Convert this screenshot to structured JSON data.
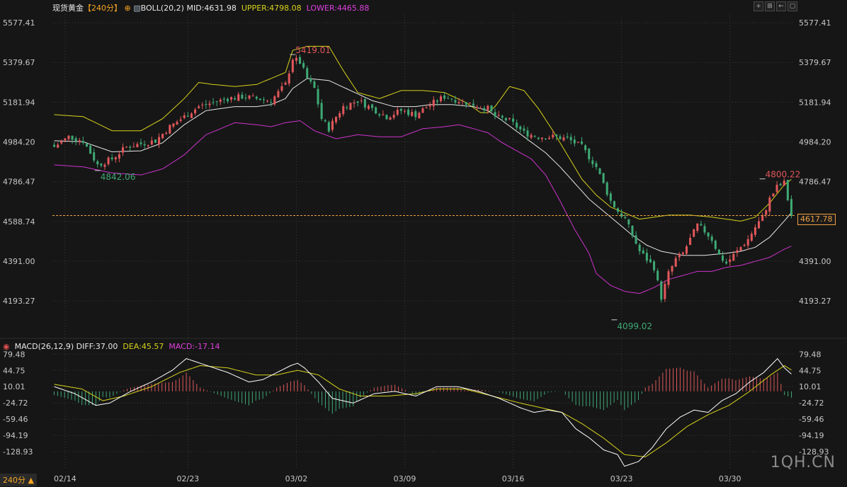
{
  "header": {
    "instrument": "现货黄金",
    "period": "【240分】",
    "boll_label": "BOLL(20,2)",
    "mid": "MID:4631.98",
    "upper": "UPPER:4798.08",
    "lower": "LOWER:4465.88"
  },
  "macd_header": {
    "label": "MACD(26,12,9)",
    "diff": "DIFF:37.00",
    "dea": "DEA:45.57",
    "macd": "MACD:-17.14"
  },
  "period_tag": "240分 ▲",
  "watermark": "1QH.CN",
  "current_price": "4617.78",
  "colors": {
    "bg": "#161616",
    "up": "#e0575b",
    "down": "#3ea874",
    "mid": "#e8e8e8",
    "upper": "#d7d21c",
    "lower": "#cc33cc",
    "dea": "#d7d21c",
    "diff": "#ffffff",
    "macd_label": "#e040e0",
    "grid": "#3a3a3a",
    "price_line": "#f0a040"
  },
  "chart_data": [
    {
      "type": "candlestick",
      "title": "现货黄金 240分",
      "indicator": "BOLL(20,2)",
      "y_ticks": [
        "5577.41",
        "5379.67",
        "5181.94",
        "4984.20",
        "4786.47",
        "4588.74",
        "4391.00",
        "4193.27"
      ],
      "y_tick_values": [
        5577.41,
        5379.67,
        5181.94,
        4984.2,
        4786.47,
        4588.74,
        4391.0,
        4193.27
      ],
      "x_ticks": [
        "02/14",
        "02/23",
        "03/02",
        "03/09",
        "03/16",
        "03/23",
        "03/30"
      ],
      "x_tick_index": [
        3,
        37,
        67,
        97,
        127,
        157,
        187
      ],
      "ylim": [
        4035,
        5620
      ],
      "n_bars": 205,
      "annotations": [
        {
          "text": "5419.01",
          "index": 66,
          "value": 5419.01,
          "kind": "high"
        },
        {
          "text": "4842.06",
          "index": 12,
          "value": 4842.06,
          "kind": "low"
        },
        {
          "text": "4800.22",
          "index": 196,
          "value": 4800.22,
          "kind": "high"
        },
        {
          "text": "4099.02",
          "index": 155,
          "value": 4099.02,
          "kind": "low"
        }
      ],
      "last_price": 4617.78,
      "anchors": {
        "close": [
          [
            0,
            4960
          ],
          [
            4,
            5010
          ],
          [
            8,
            4990
          ],
          [
            12,
            4870
          ],
          [
            16,
            4900
          ],
          [
            20,
            4960
          ],
          [
            24,
            4975
          ],
          [
            28,
            4990
          ],
          [
            32,
            5060
          ],
          [
            36,
            5110
          ],
          [
            40,
            5160
          ],
          [
            44,
            5180
          ],
          [
            48,
            5200
          ],
          [
            52,
            5210
          ],
          [
            56,
            5200
          ],
          [
            60,
            5190
          ],
          [
            64,
            5270
          ],
          [
            66,
            5400
          ],
          [
            68,
            5380
          ],
          [
            70,
            5300
          ],
          [
            72,
            5250
          ],
          [
            74,
            5100
          ],
          [
            76,
            5050
          ],
          [
            78,
            5110
          ],
          [
            80,
            5160
          ],
          [
            84,
            5190
          ],
          [
            88,
            5150
          ],
          [
            92,
            5110
          ],
          [
            96,
            5140
          ],
          [
            100,
            5120
          ],
          [
            104,
            5170
          ],
          [
            108,
            5210
          ],
          [
            112,
            5190
          ],
          [
            116,
            5170
          ],
          [
            120,
            5150
          ],
          [
            122,
            5110
          ],
          [
            126,
            5090
          ],
          [
            130,
            5030
          ],
          [
            134,
            5010
          ],
          [
            138,
            5010
          ],
          [
            142,
            5000
          ],
          [
            146,
            4960
          ],
          [
            150,
            4860
          ],
          [
            154,
            4690
          ],
          [
            156,
            4640
          ],
          [
            158,
            4600
          ],
          [
            160,
            4520
          ],
          [
            162,
            4440
          ],
          [
            164,
            4400
          ],
          [
            166,
            4360
          ],
          [
            168,
            4210
          ],
          [
            170,
            4330
          ],
          [
            172,
            4400
          ],
          [
            174,
            4430
          ],
          [
            176,
            4500
          ],
          [
            178,
            4570
          ],
          [
            180,
            4540
          ],
          [
            182,
            4500
          ],
          [
            184,
            4420
          ],
          [
            186,
            4380
          ],
          [
            188,
            4420
          ],
          [
            190,
            4460
          ],
          [
            192,
            4500
          ],
          [
            194,
            4560
          ],
          [
            196,
            4610
          ],
          [
            198,
            4700
          ],
          [
            200,
            4760
          ],
          [
            202,
            4780
          ],
          [
            204,
            4617.78
          ]
        ],
        "upper": [
          [
            0,
            5120
          ],
          [
            8,
            5110
          ],
          [
            16,
            5040
          ],
          [
            24,
            5040
          ],
          [
            30,
            5100
          ],
          [
            36,
            5200
          ],
          [
            40,
            5280
          ],
          [
            44,
            5270
          ],
          [
            50,
            5260
          ],
          [
            56,
            5270
          ],
          [
            60,
            5300
          ],
          [
            64,
            5330
          ],
          [
            66,
            5440
          ],
          [
            70,
            5460
          ],
          [
            76,
            5460
          ],
          [
            80,
            5340
          ],
          [
            84,
            5230
          ],
          [
            90,
            5200
          ],
          [
            96,
            5240
          ],
          [
            102,
            5240
          ],
          [
            108,
            5230
          ],
          [
            114,
            5180
          ],
          [
            118,
            5130
          ],
          [
            120,
            5130
          ],
          [
            122,
            5160
          ],
          [
            126,
            5260
          ],
          [
            130,
            5240
          ],
          [
            134,
            5150
          ],
          [
            138,
            5040
          ],
          [
            142,
            4920
          ],
          [
            146,
            4800
          ],
          [
            150,
            4720
          ],
          [
            154,
            4660
          ],
          [
            158,
            4630
          ],
          [
            162,
            4600
          ],
          [
            166,
            4610
          ],
          [
            170,
            4620
          ],
          [
            176,
            4620
          ],
          [
            182,
            4610
          ],
          [
            186,
            4600
          ],
          [
            190,
            4590
          ],
          [
            194,
            4610
          ],
          [
            198,
            4680
          ],
          [
            202,
            4770
          ],
          [
            204,
            4798.08
          ]
        ],
        "mid": [
          [
            0,
            4990
          ],
          [
            8,
            4985
          ],
          [
            16,
            4935
          ],
          [
            24,
            4940
          ],
          [
            30,
            4980
          ],
          [
            36,
            5070
          ],
          [
            42,
            5140
          ],
          [
            50,
            5160
          ],
          [
            56,
            5160
          ],
          [
            60,
            5170
          ],
          [
            64,
            5200
          ],
          [
            66,
            5250
          ],
          [
            70,
            5300
          ],
          [
            76,
            5290
          ],
          [
            82,
            5240
          ],
          [
            88,
            5190
          ],
          [
            94,
            5160
          ],
          [
            100,
            5160
          ],
          [
            104,
            5170
          ],
          [
            110,
            5170
          ],
          [
            116,
            5160
          ],
          [
            120,
            5140
          ],
          [
            124,
            5090
          ],
          [
            130,
            5010
          ],
          [
            136,
            4930
          ],
          [
            140,
            4860
          ],
          [
            144,
            4780
          ],
          [
            148,
            4700
          ],
          [
            152,
            4640
          ],
          [
            156,
            4580
          ],
          [
            160,
            4520
          ],
          [
            164,
            4470
          ],
          [
            168,
            4440
          ],
          [
            174,
            4420
          ],
          [
            180,
            4420
          ],
          [
            186,
            4430
          ],
          [
            190,
            4440
          ],
          [
            194,
            4460
          ],
          [
            198,
            4510
          ],
          [
            202,
            4590
          ],
          [
            204,
            4631.98
          ]
        ],
        "lower": [
          [
            0,
            4870
          ],
          [
            8,
            4860
          ],
          [
            16,
            4830
          ],
          [
            24,
            4820
          ],
          [
            30,
            4850
          ],
          [
            36,
            4920
          ],
          [
            42,
            5020
          ],
          [
            50,
            5080
          ],
          [
            56,
            5070
          ],
          [
            60,
            5060
          ],
          [
            64,
            5080
          ],
          [
            68,
            5090
          ],
          [
            72,
            5040
          ],
          [
            78,
            5000
          ],
          [
            84,
            5020
          ],
          [
            90,
            5010
          ],
          [
            96,
            5010
          ],
          [
            102,
            5050
          ],
          [
            108,
            5060
          ],
          [
            112,
            5070
          ],
          [
            116,
            5050
          ],
          [
            120,
            5030
          ],
          [
            124,
            4980
          ],
          [
            128,
            4940
          ],
          [
            132,
            4900
          ],
          [
            136,
            4820
          ],
          [
            140,
            4690
          ],
          [
            144,
            4550
          ],
          [
            148,
            4430
          ],
          [
            150,
            4330
          ],
          [
            154,
            4270
          ],
          [
            158,
            4240
          ],
          [
            162,
            4230
          ],
          [
            166,
            4260
          ],
          [
            170,
            4300
          ],
          [
            174,
            4320
          ],
          [
            178,
            4340
          ],
          [
            182,
            4340
          ],
          [
            186,
            4360
          ],
          [
            190,
            4370
          ],
          [
            194,
            4390
          ],
          [
            198,
            4410
          ],
          [
            202,
            4450
          ],
          [
            204,
            4465.88
          ]
        ]
      }
    },
    {
      "type": "bar+line",
      "title": "MACD(26,12,9)",
      "y_ticks": [
        "79.48",
        "44.75",
        "10.01",
        "-24.72",
        "-59.46",
        "-94.19",
        "-128.93"
      ],
      "y_tick_values": [
        79.48,
        44.75,
        10.01,
        -24.72,
        -59.46,
        -94.19,
        -128.93
      ],
      "ylim": [
        -165,
        92
      ],
      "series": [
        {
          "name": "DIFF",
          "last": 37.0,
          "anchors": [
            [
              0,
              10
            ],
            [
              6,
              -5
            ],
            [
              12,
              -30
            ],
            [
              16,
              -25
            ],
            [
              22,
              0
            ],
            [
              28,
              20
            ],
            [
              34,
              45
            ],
            [
              38,
              70
            ],
            [
              42,
              60
            ],
            [
              50,
              40
            ],
            [
              56,
              20
            ],
            [
              60,
              25
            ],
            [
              64,
              40
            ],
            [
              68,
              55
            ],
            [
              70,
              60
            ],
            [
              72,
              50
            ],
            [
              76,
              20
            ],
            [
              80,
              -15
            ],
            [
              86,
              -25
            ],
            [
              92,
              -5
            ],
            [
              98,
              0
            ],
            [
              104,
              -10
            ],
            [
              110,
              10
            ],
            [
              116,
              10
            ],
            [
              122,
              0
            ],
            [
              128,
              -15
            ],
            [
              134,
              -35
            ],
            [
              138,
              -45
            ],
            [
              142,
              -40
            ],
            [
              146,
              -45
            ],
            [
              150,
              -80
            ],
            [
              154,
              -100
            ],
            [
              158,
              -125
            ],
            [
              162,
              -135
            ],
            [
              164,
              -160
            ],
            [
              168,
              -150
            ],
            [
              172,
              -120
            ],
            [
              176,
              -80
            ],
            [
              180,
              -55
            ],
            [
              184,
              -40
            ],
            [
              188,
              -45
            ],
            [
              192,
              -20
            ],
            [
              196,
              -5
            ],
            [
              200,
              20
            ],
            [
              204,
              40
            ],
            [
              206,
              55
            ],
            [
              208,
              70
            ],
            [
              210,
              50
            ],
            [
              212,
              37
            ]
          ]
        },
        {
          "name": "DEA",
          "last": 45.57,
          "anchors": [
            [
              0,
              15
            ],
            [
              8,
              5
            ],
            [
              14,
              -20
            ],
            [
              20,
              -10
            ],
            [
              28,
              10
            ],
            [
              36,
              40
            ],
            [
              42,
              55
            ],
            [
              50,
              50
            ],
            [
              58,
              35
            ],
            [
              64,
              35
            ],
            [
              70,
              45
            ],
            [
              76,
              35
            ],
            [
              82,
              5
            ],
            [
              88,
              -10
            ],
            [
              96,
              -10
            ],
            [
              104,
              -5
            ],
            [
              110,
              5
            ],
            [
              118,
              5
            ],
            [
              126,
              -10
            ],
            [
              134,
              -25
            ],
            [
              140,
              -35
            ],
            [
              146,
              -45
            ],
            [
              152,
              -70
            ],
            [
              158,
              -100
            ],
            [
              164,
              -135
            ],
            [
              170,
              -140
            ],
            [
              176,
              -110
            ],
            [
              182,
              -75
            ],
            [
              188,
              -50
            ],
            [
              194,
              -30
            ],
            [
              200,
              0
            ],
            [
              206,
              35
            ],
            [
              210,
              55
            ],
            [
              212,
              45.57
            ]
          ]
        },
        {
          "name": "MACD",
          "last": -17.14
        }
      ]
    }
  ]
}
